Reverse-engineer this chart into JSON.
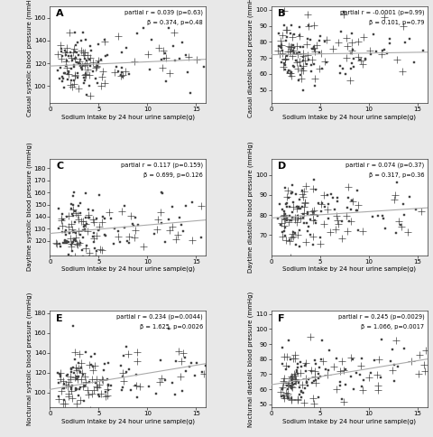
{
  "panels": [
    {
      "label": "A",
      "ylabel": "Casual systolic blood pressure (mmHg)",
      "xlabel": "Sodium intake by 24 hour urine sample(g)",
      "annotation1": "partial r = 0.039 (p=0.63)",
      "annotation2": "β = 0.374, p=0.48",
      "ylim": [
        85,
        170
      ],
      "yticks": [
        100,
        120,
        140,
        160
      ],
      "xlim": [
        0,
        16
      ],
      "xticks": [
        0,
        5,
        10,
        15
      ],
      "slope": 0.374,
      "intercept": 117.5
    },
    {
      "label": "B",
      "ylabel": "Casual diastolic blood pressure (mmHg)",
      "xlabel": "Sodium intake by 24 hour urine sample(g)",
      "annotation1": "partial r = -0.0001 (p=0.99)",
      "annotation2": "β = 0.101, p=0.79",
      "ylim": [
        42,
        102
      ],
      "yticks": [
        50,
        60,
        70,
        80,
        90,
        100
      ],
      "xlim": [
        0,
        16
      ],
      "xticks": [
        0,
        5,
        10,
        15
      ],
      "slope": 0.101,
      "intercept": 72.0
    },
    {
      "label": "C",
      "ylabel": "Daytime systolic blood pressure (mmHg)",
      "xlabel": "Sodium intake by 24 hour urine sample(g)",
      "annotation1": "partial r = 0.117 (p=0.159)",
      "annotation2": "β = 0.699, p=0.126",
      "ylim": [
        108,
        188
      ],
      "yticks": [
        120,
        130,
        140,
        150,
        160,
        170,
        180
      ],
      "xlim": [
        0,
        16
      ],
      "xticks": [
        0,
        5,
        10,
        15
      ],
      "slope": 0.699,
      "intercept": 126.0
    },
    {
      "label": "D",
      "ylabel": "Daytime diastolic blood pressure (mmHg)",
      "xlabel": "Sodium intake by 24 hour urine sample(g)",
      "annotation1": "partial r = 0.074 (p=0.37)",
      "annotation2": "β = 0.317, p=0.36",
      "ylim": [
        60,
        108
      ],
      "yticks": [
        70,
        80,
        90,
        100
      ],
      "xlim": [
        0,
        16
      ],
      "xticks": [
        0,
        5,
        10,
        15
      ],
      "slope": 0.317,
      "intercept": 78.5
    },
    {
      "label": "E",
      "ylabel": "Nocturnal systolic blood pressure (mmHg)",
      "xlabel": "Sodium intake by 24 hour urine sample(g)",
      "annotation1": "partial r = 0.234 (p=0.0044)",
      "annotation2": "β = 1.625, p=0.0026",
      "ylim": [
        85,
        182
      ],
      "yticks": [
        100,
        120,
        140,
        160,
        180
      ],
      "xlim": [
        0,
        16
      ],
      "xticks": [
        0,
        5,
        10,
        15
      ],
      "slope": 1.625,
      "intercept": 103.0
    },
    {
      "label": "F",
      "ylabel": "Nocturnal diastolic blood pressure (mmHg)",
      "xlabel": "Sodium intake by 24 hour urine sample(g)",
      "annotation1": "partial r = 0.245 (p=0.0029)",
      "annotation2": "β = 1.066, p=0.0017",
      "ylim": [
        48,
        112
      ],
      "yticks": [
        50,
        60,
        70,
        80,
        90,
        100,
        110
      ],
      "xlim": [
        0,
        16
      ],
      "xticks": [
        0,
        5,
        10,
        15
      ],
      "slope": 1.066,
      "intercept": 63.0
    }
  ],
  "scatter_color": "#444444",
  "line_color": "#aaaaaa",
  "bg_outer": "#e8e8e8",
  "bg_panel": "#ffffff",
  "marker_size_sq": 2.0,
  "marker_size_pl": 3.5,
  "tick_fontsize": 5.0,
  "label_fontsize": 5.0,
  "annot_fontsize": 4.8,
  "panel_label_fontsize": 8.0,
  "random_seed": 42,
  "n_points": 160
}
